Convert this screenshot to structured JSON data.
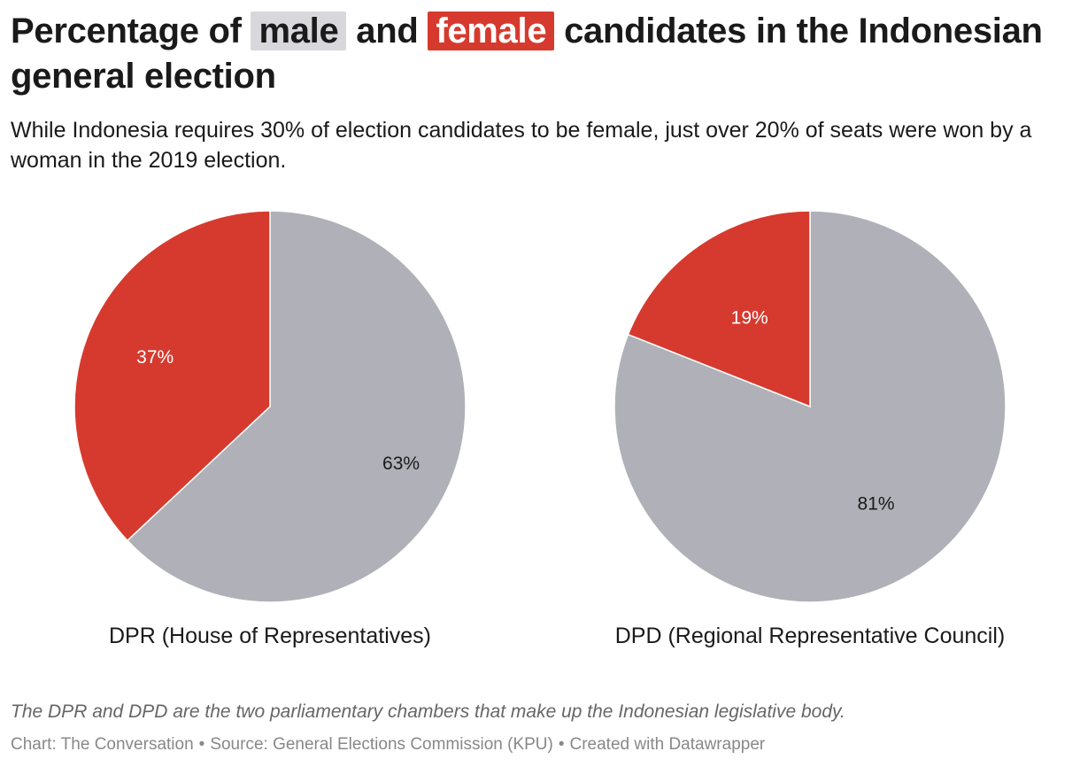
{
  "header": {
    "title_part1": "Percentage of",
    "title_male": "male",
    "title_and": "and",
    "title_female": "female",
    "title_part2": "candidates in the Indonesian general election",
    "subtitle": "While Indonesia requires 30% of election candidates to be female, just over 20% of seats were won by a woman in the 2019 election."
  },
  "colors": {
    "male": "#b0b0b8",
    "female": "#d63a2e",
    "highlight_male": "#d8d8dc"
  },
  "chart_data": [
    {
      "type": "pie",
      "label": "DPR (House of Representatives)",
      "slices": [
        {
          "name": "male",
          "value": 63,
          "label": "63%"
        },
        {
          "name": "female",
          "value": 37,
          "label": "37%"
        }
      ]
    },
    {
      "type": "pie",
      "label": "DPD (Regional Representative Council)",
      "slices": [
        {
          "name": "male",
          "value": 81,
          "label": "81%"
        },
        {
          "name": "female",
          "value": 19,
          "label": "19%"
        }
      ]
    }
  ],
  "footer": {
    "note": "The DPR and DPD are the two parliamentary chambers that make up the Indonesian legislative body.",
    "chart_credit": "Chart: The Conversation",
    "source": "Source: General Elections Commission (KPU)",
    "created_with": "Created with Datawrapper",
    "separator": "•"
  }
}
